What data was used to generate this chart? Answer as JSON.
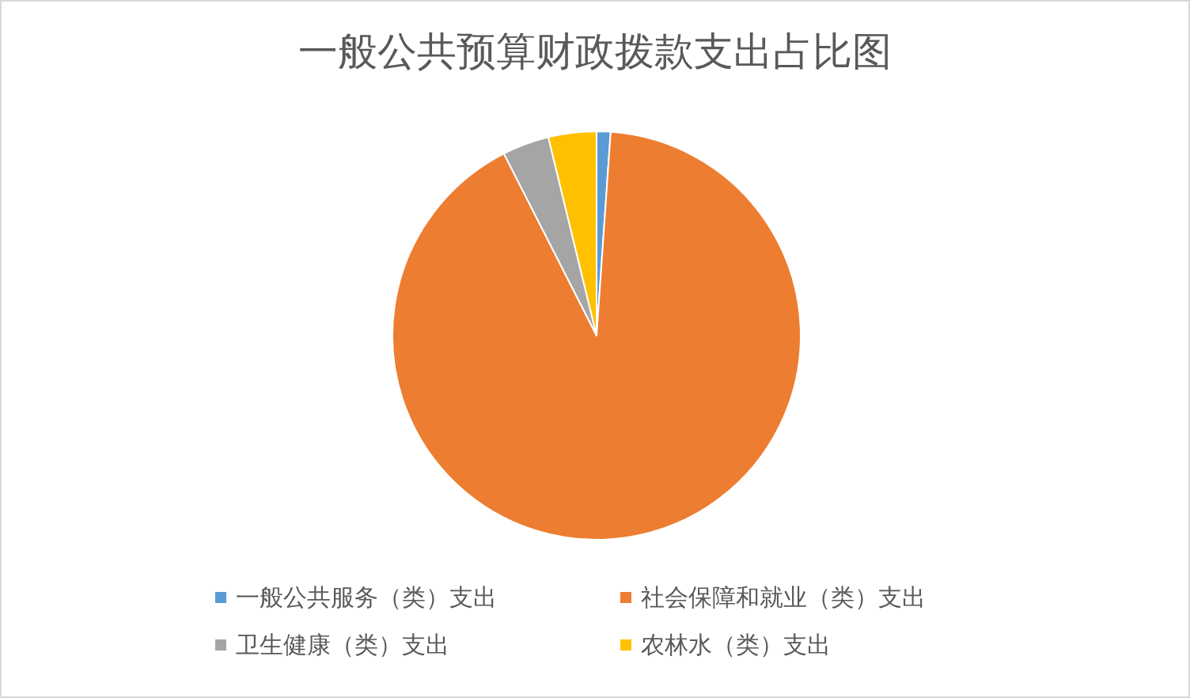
{
  "chart_data": {
    "type": "pie",
    "title": "一般公共预算财政拨款支出占比图",
    "categories": [
      "一般公共服务（类）支出",
      "社会保障和就业（类）支出",
      "卫生健康（类）支出",
      "农林水（类）支出"
    ],
    "values": [
      1.1,
      91.4,
      3.7,
      3.8
    ],
    "colors": [
      "#5b9bd5",
      "#ed7d31",
      "#a5a5a5",
      "#ffc000"
    ],
    "legend": "bottom"
  }
}
